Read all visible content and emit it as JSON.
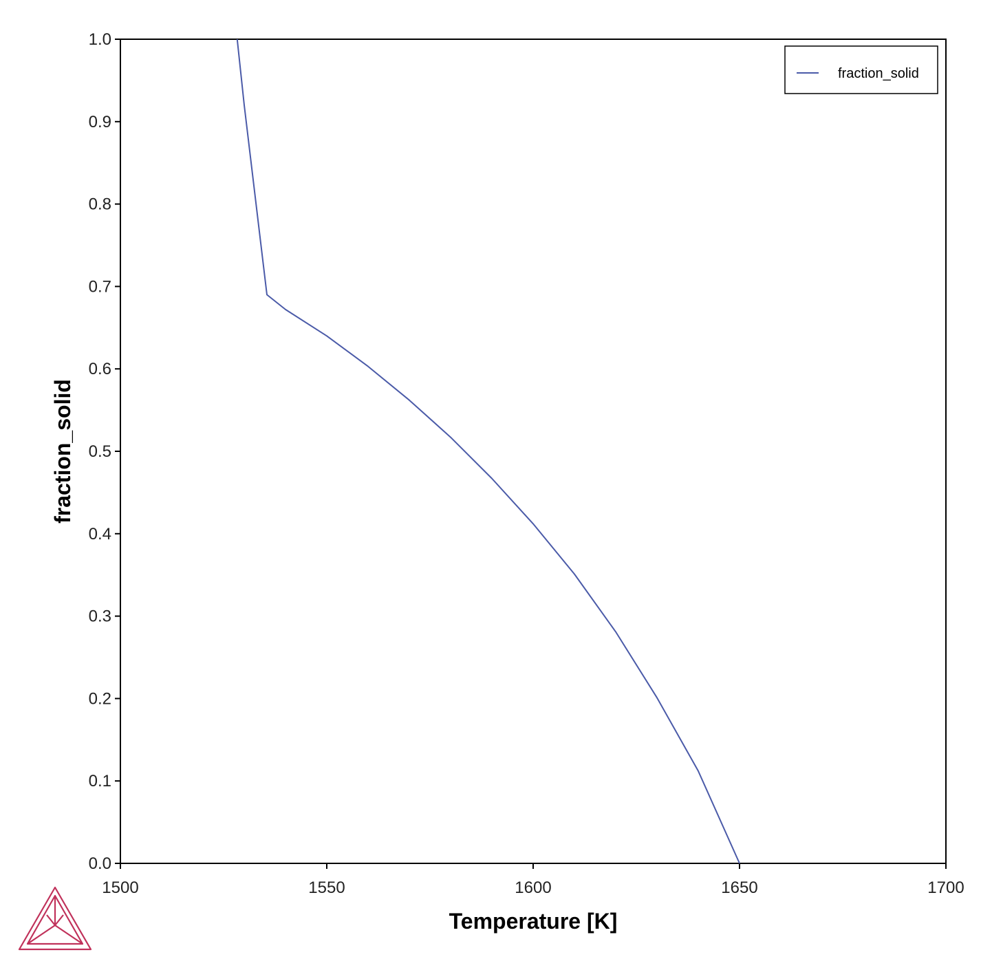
{
  "chart_data": {
    "type": "line",
    "xlabel": "Temperature [K]",
    "ylabel": "fraction_solid",
    "xlim": [
      1500,
      1700
    ],
    "ylim": [
      0.0,
      1.0
    ],
    "x_ticks": [
      1500,
      1550,
      1600,
      1650,
      1700
    ],
    "x_tick_labels": [
      "1500",
      "1550",
      "1600",
      "1650",
      "1700"
    ],
    "y_ticks": [
      0.0,
      0.1,
      0.2,
      0.3,
      0.4,
      0.5,
      0.6,
      0.7,
      0.8,
      0.9,
      1.0
    ],
    "y_tick_labels": [
      "0.0",
      "0.1",
      "0.2",
      "0.3",
      "0.4",
      "0.5",
      "0.6",
      "0.7",
      "0.8",
      "0.9",
      "1.0"
    ],
    "grid": false,
    "legend": {
      "placement": "top-right",
      "entries": [
        "fraction_solid"
      ]
    },
    "series": [
      {
        "name": "fraction_solid",
        "color": "#4a5aa8",
        "x": [
          1528.3,
          1530,
          1535.5,
          1540,
          1550,
          1560,
          1570,
          1580,
          1590,
          1600,
          1610,
          1620,
          1630,
          1640,
          1650
        ],
        "y": [
          1.0,
          0.92,
          0.69,
          0.672,
          0.64,
          0.603,
          0.562,
          0.517,
          0.467,
          0.412,
          0.351,
          0.281,
          0.201,
          0.112,
          0.0
        ]
      }
    ]
  },
  "logo": {
    "name": "thermo-calc-logo",
    "color": "#c0315a"
  }
}
